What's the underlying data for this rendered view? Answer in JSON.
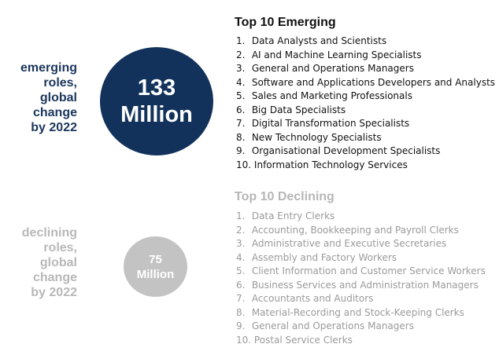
{
  "emerging": {
    "label_lines": [
      "emerging",
      "roles,",
      "global",
      "change",
      "by 2022"
    ],
    "circle_lines": [
      "133",
      "Million"
    ],
    "title": "Top 10 Emerging",
    "items": [
      {
        "num": "1.",
        "text": "Data Analysts and Scientists"
      },
      {
        "num": "2.",
        "text": "AI and Machine Learning Specialists"
      },
      {
        "num": "3.",
        "text": "General and Operations Managers"
      },
      {
        "num": "4.",
        "text": "Software and Applications Developers and Analysts"
      },
      {
        "num": "5.",
        "text": "Sales and Marketing Professionals"
      },
      {
        "num": "6.",
        "text": "Big Data Specialists"
      },
      {
        "num": "7.",
        "text": "Digital Transformation Specialists"
      },
      {
        "num": "8.",
        "text": "New Technology Specialists"
      },
      {
        "num": "9.",
        "text": "Organisational Development Specialists"
      },
      {
        "num": "10.",
        "text": "Information Technology Services"
      }
    ]
  },
  "declining": {
    "label_lines": [
      "declining",
      "roles,",
      "global",
      "change",
      "by 2022"
    ],
    "circle_lines": [
      "75",
      "Million"
    ],
    "title": "Top 10 Declining",
    "items": [
      {
        "num": "1.",
        "text": "Data Entry Clerks"
      },
      {
        "num": "2.",
        "text": "Accounting,  Bookkeeping and Payroll Clerks"
      },
      {
        "num": "3.",
        "text": "Administrative and Executive Secretaries"
      },
      {
        "num": "4.",
        "text": "Assembly and Factory Workers"
      },
      {
        "num": "5.",
        "text": "Client Information and Customer Service Workers"
      },
      {
        "num": "6.",
        "text": "Business Services and Administration Managers"
      },
      {
        "num": "7.",
        "text": "Accountants and Auditors"
      },
      {
        "num": "8.",
        "text": "Material-Recording and Stock-Keeping Clerks"
      },
      {
        "num": "9.",
        "text": "General and Operations Managers"
      },
      {
        "num": "10.",
        "text": "Postal Service Clerks"
      }
    ]
  },
  "colors": {
    "emerging_circle": "#13325b",
    "emerging_label": "#1b365d",
    "declining_circle": "#c3c3c3",
    "declining_label": "#b8b8b8"
  }
}
